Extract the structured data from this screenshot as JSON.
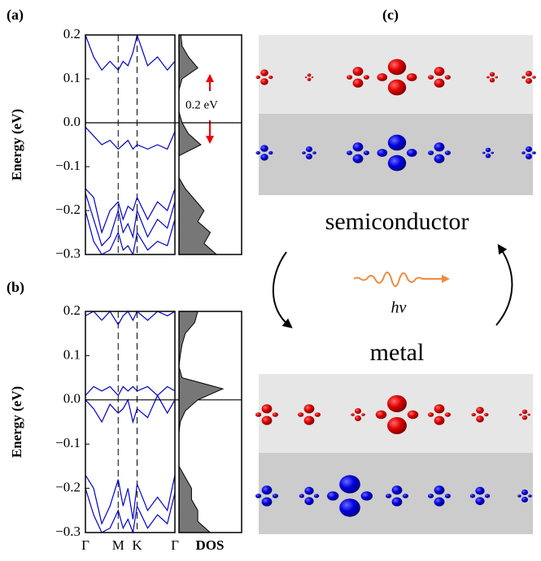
{
  "figure_labels": {
    "a": "(a)",
    "b": "(b)",
    "c": "(c)"
  },
  "energy_axis": {
    "label": "Energy (eV)",
    "ylim": [
      -0.3,
      0.2
    ],
    "yticks": [
      0.2,
      0.1,
      {
        "value": 0,
        "label": "0.0"
      },
      {
        "value": -0.1,
        "label": "−0.1"
      },
      {
        "value": -0.2,
        "label": "−0.2"
      },
      {
        "value": -0.3,
        "label": "−0.3"
      }
    ]
  },
  "kpath": {
    "xlim": [
      0,
      2.732
    ],
    "xticks": [
      {
        "value": 0,
        "label": "Γ"
      },
      {
        "value": 1,
        "label": "M"
      },
      {
        "value": 1.577,
        "label": "K"
      },
      {
        "value": 2.732,
        "label": "Γ"
      }
    ],
    "x": [
      0,
      0.25,
      0.5,
      0.75,
      1,
      1.15,
      1.3,
      1.45,
      1.577,
      1.9,
      2.2,
      2.5,
      2.732
    ]
  },
  "dos_label": "DOS",
  "gap_annotation": "0.2 eV",
  "panels": [
    {
      "bands": [
        {
          "values": [
            0.2,
            0.15,
            0.12,
            0.14,
            0.12,
            0.14,
            0.13,
            0.16,
            0.2,
            0.13,
            0.15,
            0.12,
            0.14
          ]
        },
        {
          "values": [
            -0.01,
            -0.03,
            -0.05,
            -0.04,
            -0.06,
            -0.05,
            -0.04,
            -0.06,
            -0.05,
            -0.06,
            -0.05,
            -0.06,
            -0.02
          ]
        },
        {
          "values": [
            -0.15,
            -0.17,
            -0.25,
            -0.2,
            -0.18,
            -0.22,
            -0.19,
            -0.2,
            -0.17,
            -0.22,
            -0.18,
            -0.2,
            -0.15
          ]
        },
        {
          "values": [
            -0.16,
            -0.22,
            -0.28,
            -0.26,
            -0.2,
            -0.25,
            -0.23,
            -0.26,
            -0.2,
            -0.26,
            -0.22,
            -0.24,
            -0.18
          ]
        },
        {
          "values": [
            -0.2,
            -0.27,
            -0.3,
            -0.29,
            -0.25,
            -0.29,
            -0.28,
            -0.3,
            -0.25,
            -0.29,
            -0.27,
            -0.28,
            -0.22
          ]
        }
      ],
      "dos": {
        "xlim": [
          0,
          1
        ],
        "energies": [
          -0.3,
          -0.275,
          -0.25,
          -0.225,
          -0.2,
          -0.175,
          -0.15,
          -0.125,
          -0.1,
          -0.075,
          -0.05,
          -0.025,
          0,
          0.025,
          0.05,
          0.075,
          0.1,
          0.125,
          0.15,
          0.175,
          0.2
        ],
        "values": [
          0.6,
          0.4,
          0.5,
          0.3,
          0.4,
          0.25,
          0.1,
          0,
          0,
          0,
          0.35,
          0.15,
          0.05,
          0,
          0,
          0,
          0.05,
          0.3,
          0.15,
          0.05,
          0.03
        ]
      }
    },
    {
      "bands": [
        {
          "values": [
            0.19,
            0.2,
            0.18,
            0.2,
            0.17,
            0.19,
            0.2,
            0.18,
            0.2,
            0.18,
            0.2,
            0.19,
            0.2
          ]
        },
        {
          "values": [
            0.01,
            0.03,
            0.02,
            0.03,
            0.01,
            0.03,
            0.02,
            0.03,
            0.02,
            0.03,
            0.01,
            0.03,
            0.02
          ]
        },
        {
          "values": [
            0,
            -0.02,
            -0.05,
            -0.01,
            -0.03,
            -0.02,
            0,
            -0.05,
            -0.02,
            -0.04,
            0.01,
            -0.03,
            0
          ]
        },
        {
          "values": [
            -0.17,
            -0.2,
            -0.28,
            -0.24,
            -0.18,
            -0.24,
            -0.2,
            -0.27,
            -0.19,
            -0.25,
            -0.22,
            -0.25,
            -0.17
          ]
        },
        {
          "values": [
            -0.2,
            -0.26,
            -0.3,
            -0.29,
            -0.25,
            -0.29,
            -0.27,
            -0.3,
            -0.24,
            -0.29,
            -0.26,
            -0.28,
            -0.21
          ]
        }
      ],
      "dos": {
        "xlim": [
          0,
          1
        ],
        "energies": [
          -0.3,
          -0.275,
          -0.25,
          -0.225,
          -0.2,
          -0.175,
          -0.15,
          -0.125,
          -0.1,
          -0.075,
          -0.05,
          -0.025,
          0,
          0.025,
          0.05,
          0.075,
          0.1,
          0.125,
          0.15,
          0.175,
          0.2
        ],
        "values": [
          0.5,
          0.3,
          0.3,
          0.2,
          0.2,
          0.1,
          0,
          0,
          0,
          0,
          0.02,
          0.1,
          0.3,
          0.7,
          0.05,
          0,
          0.02,
          0.05,
          0.1,
          0.25,
          0.3
        ]
      }
    }
  ],
  "states": {
    "top": "semiconductor",
    "bottom": "metal",
    "photon": "hν"
  }
}
